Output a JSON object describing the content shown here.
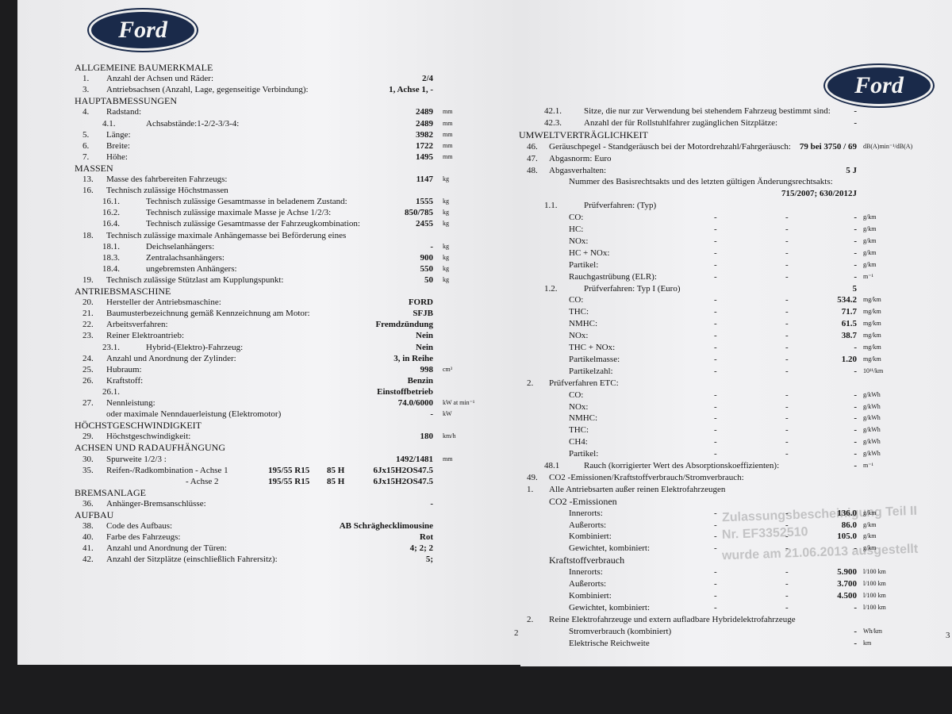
{
  "logos": [
    "Ford",
    "Ford"
  ],
  "left": {
    "page_number": "2",
    "rows": [
      {
        "heading": "ALLGEMEINE BAUMERKMALE"
      },
      {
        "num": "1.",
        "label": "Anzahl der Achsen und Räder:",
        "value": "2/4"
      },
      {
        "num": "3.",
        "label": "Antriebsachsen (Anzahl, Lage, gegenseitige Verbindung):",
        "value": "1, Achse 1, -"
      },
      {
        "heading": "HAUPTABMESSUNGEN"
      },
      {
        "num": "4.",
        "label": "Radstand:",
        "value": "2489",
        "unit": "mm"
      },
      {
        "num": "4.1.",
        "label": "Achsabstände:1-2/2-3/3-4:",
        "value": "2489",
        "unit": "mm"
      },
      {
        "num": "5.",
        "label": "Länge:",
        "value": "3982",
        "unit": "mm"
      },
      {
        "num": "6.",
        "label": "Breite:",
        "value": "1722",
        "unit": "mm"
      },
      {
        "num": "7.",
        "label": "Höhe:",
        "value": "1495",
        "unit": "mm"
      },
      {
        "heading": "MASSEN"
      },
      {
        "num": "13.",
        "label": "Masse des fahrbereiten Fahrzeugs:",
        "value": "1147",
        "unit": "kg"
      },
      {
        "num": "16.",
        "label": "Technisch zulässige Höchstmassen"
      },
      {
        "num": "16.1.",
        "label": "Technisch zulässige Gesamtmasse in beladenem Zustand:",
        "value": "1555",
        "unit": "kg"
      },
      {
        "num": "16.2.",
        "label": "Technisch zulässige maximale Masse je Achse 1/2/3:",
        "value": "850/785",
        "unit": "kg"
      },
      {
        "num": "16.4.",
        "label": "Technisch zulässige Gesamtmasse der Fahrzeugkombination:",
        "value": "2455",
        "unit": "kg"
      },
      {
        "num": "18.",
        "label": "Technisch zulässige maximale Anhängemasse bei Beförderung eines"
      },
      {
        "num": "18.1.",
        "label": "Deichselanhängers:",
        "value": "-",
        "unit": "kg"
      },
      {
        "num": "18.3.",
        "label": "Zentralachsanhängers:",
        "value": "900",
        "unit": "kg"
      },
      {
        "num": "18.4.",
        "label": "ungebremsten Anhängers:",
        "value": "550",
        "unit": "kg"
      },
      {
        "num": "19.",
        "label": "Technisch zulässige Stützlast am Kupplungspunkt:",
        "value": "50",
        "unit": "kg"
      },
      {
        "heading": "ANTRIEBSMASCHINE"
      },
      {
        "num": "20.",
        "label": "Hersteller der Antriebsmaschine:",
        "value": "FORD"
      },
      {
        "num": "21.",
        "label": "Baumusterbezeichnung gemäß Kennzeichnung am Motor:",
        "value": "SFJB"
      },
      {
        "num": "22.",
        "label": "Arbeitsverfahren:",
        "value": "Fremdzündung"
      },
      {
        "num": "23.",
        "label": "Reiner Elektroantrieb:",
        "value": "Nein"
      },
      {
        "num": "23.1.",
        "label": "Hybrid-(Elektro)-Fahrzeug:",
        "value": "Nein"
      },
      {
        "num": "24.",
        "label": "Anzahl und Anordnung der Zylinder:",
        "value": "3, in Reihe"
      },
      {
        "num": "25.",
        "label": "Hubraum:",
        "value": "998",
        "unit": "cm³"
      },
      {
        "num": "26.",
        "label": "Kraftstoff:",
        "value": "Benzin"
      },
      {
        "num": "26.1.",
        "value": "Einstoffbetrieb"
      },
      {
        "num": "27.",
        "label": "Nennleistung:",
        "value": "74.0/6000",
        "unit": "kW at min⁻¹"
      },
      {
        "label": "oder maximale Nenndauerleistung (Elektromotor)",
        "value": "-",
        "unit": "kW"
      },
      {
        "heading": "HÖCHSTGESCHWINDIGKEIT"
      },
      {
        "num": "29.",
        "label": "Höchstgeschwindigkeit:",
        "value": "180",
        "unit": "km/h"
      },
      {
        "heading": "ACHSEN UND RADAUFHÄNGUNG"
      },
      {
        "num": "30.",
        "label": "Spurweite 1/2/3 :",
        "value": "1492/1481",
        "unit": "mm"
      },
      {
        "num": "35.",
        "label": "Reifen-/Radkombination - Achse 1",
        "tyre": "195/55 R15",
        "load": "85 H",
        "value": "6Jx15H2OS47.5"
      },
      {
        "label": "- Achse 2",
        "tyre": "195/55 R15",
        "load": "85 H",
        "value": "6Jx15H2OS47.5"
      },
      {
        "heading": "BREMSANLAGE"
      },
      {
        "num": "36.",
        "label": "Anhänger-Bremsanschlüsse:",
        "value": "-"
      },
      {
        "heading": "AUFBAU"
      },
      {
        "num": "38.",
        "label": "Code des Aufbaus:",
        "value": "AB Schräghecklimousine"
      },
      {
        "num": "40.",
        "label": "Farbe des Fahrzeugs:",
        "value": "Rot"
      },
      {
        "num": "41.",
        "label": "Anzahl und Anordnung der Türen:",
        "value": "4; 2; 2"
      },
      {
        "num": "42.",
        "label": "Anzahl der Sitzplätze (einschließlich Fahrersitz):",
        "value": "5;"
      }
    ]
  },
  "right": {
    "page_number": "3",
    "rows": [
      {
        "num": "42.1.",
        "label": "Sitze, die nur zur Verwendung bei stehendem Fahrzeug bestimmt sind:",
        "value": "-"
      },
      {
        "num": "42.3.",
        "label": "Anzahl der für Rollstuhlfahrer zugänglichen Sitzplätze:",
        "value": "-"
      },
      {
        "heading": "UMWELTVERTRÄGLICHKEIT"
      },
      {
        "num": "46.",
        "label": "Geräuschpegel - Standgeräusch bei der Motordrehzahl/Fahrgeräusch:",
        "value": "79 bei 3750 / 69",
        "unit": "dB(A)min⁻¹/dB(A)"
      },
      {
        "num": "47.",
        "label": "Abgasnorm: Euro"
      },
      {
        "num": "48.",
        "label": "Abgasverhalten:",
        "value": "5 J"
      },
      {
        "label": "Nummer des Basisrechtsakts und des letzten gültigen Änderungsrechtsakts:"
      },
      {
        "value": "715/2007; 630/2012J"
      },
      {
        "num": "1.1.",
        "label": "Prüfverfahren: (Typ)"
      },
      {
        "label": "CO:",
        "c1": "-",
        "c2": "-",
        "value": "-",
        "unit": "g/km"
      },
      {
        "label": "HC:",
        "c1": "-",
        "c2": "-",
        "value": "-",
        "unit": "g/km"
      },
      {
        "label": "NOx:",
        "c1": "-",
        "c2": "-",
        "value": "-",
        "unit": "g/km"
      },
      {
        "label": "HC + NOx:",
        "c1": "-",
        "c2": "-",
        "value": "-",
        "unit": "g/km"
      },
      {
        "label": "Partikel:",
        "c1": "-",
        "c2": "-",
        "value": "-",
        "unit": "g/km"
      },
      {
        "label": "Rauchgastrübung (ELR):",
        "c1": "-",
        "c2": "-",
        "value": "-",
        "unit": "m⁻¹"
      },
      {
        "num": "1.2.",
        "label": "Prüfverfahren: Typ I (Euro)",
        "value": "5"
      },
      {
        "label": "CO:",
        "c1": "-",
        "c2": "-",
        "value": "534.2",
        "unit": "mg/km"
      },
      {
        "label": "THC:",
        "c1": "-",
        "c2": "-",
        "value": "71.7",
        "unit": "mg/km"
      },
      {
        "label": "NMHC:",
        "c1": "-",
        "c2": "-",
        "value": "61.5",
        "unit": "mg/km"
      },
      {
        "label": "NOx:",
        "c1": "-",
        "c2": "-",
        "value": "38.7",
        "unit": "mg/km"
      },
      {
        "label": "THC + NOx:",
        "c1": "-",
        "c2": "-",
        "value": "-",
        "unit": "mg/km"
      },
      {
        "label": "Partikelmasse:",
        "c1": "-",
        "c2": "-",
        "value": "1.20",
        "unit": "mg/km"
      },
      {
        "label": "Partikelzahl:",
        "c1": "-",
        "c2": "-",
        "value": "-",
        "unit": "10¹¹/km"
      },
      {
        "num": "2.",
        "label": "Prüfverfahren ETC:"
      },
      {
        "label": "CO:",
        "c1": "-",
        "c2": "-",
        "value": "-",
        "unit": "g/kWh"
      },
      {
        "label": "NOx:",
        "c1": "-",
        "c2": "-",
        "value": "-",
        "unit": "g/kWh"
      },
      {
        "label": "NMHC:",
        "c1": "-",
        "c2": "-",
        "value": "-",
        "unit": "g/kWh"
      },
      {
        "label": "THC:",
        "c1": "-",
        "c2": "-",
        "value": "-",
        "unit": "g/kWh"
      },
      {
        "label": "CH4:",
        "c1": "-",
        "c2": "-",
        "value": "-",
        "unit": "g/kWh"
      },
      {
        "label": "Partikel:",
        "c1": "-",
        "c2": "-",
        "value": "-",
        "unit": "g/kWh"
      },
      {
        "num": "48.1",
        "label": "Rauch (korrigierter Wert des Absorptionskoeffizienten):",
        "value": "-",
        "unit": "m⁻¹"
      },
      {
        "num": "49.",
        "label": "CO2 -Emissionen/Kraftstoffverbrauch/Stromverbrauch:"
      },
      {
        "num": "1.",
        "label": "Alle Antriebsarten außer reinen Elektrofahrzeugen"
      },
      {
        "heading": "CO2 -Emissionen"
      },
      {
        "label": "Innerorts:",
        "c1": "-",
        "c2": "-",
        "value": "136.0",
        "unit": "g/km"
      },
      {
        "label": "Außerorts:",
        "c1": "-",
        "c2": "-",
        "value": "86.0",
        "unit": "g/km"
      },
      {
        "label": "Kombiniert:",
        "c1": "-",
        "c2": "-",
        "value": "105.0",
        "unit": "g/km"
      },
      {
        "label": "Gewichtet, kombiniert:",
        "c1": "-",
        "c2": "-",
        "value": "-",
        "unit": "g/km"
      },
      {
        "heading": "Kraftstoffverbrauch"
      },
      {
        "label": "Innerorts:",
        "c1": "-",
        "c2": "-",
        "value": "5.900",
        "unit": "l/100 km"
      },
      {
        "label": "Außerorts:",
        "c1": "-",
        "c2": "-",
        "value": "3.700",
        "unit": "l/100 km"
      },
      {
        "label": "Kombiniert:",
        "c1": "-",
        "c2": "-",
        "value": "4.500",
        "unit": "l/100 km"
      },
      {
        "label": "Gewichtet, kombiniert:",
        "c1": "-",
        "c2": "-",
        "value": "-",
        "unit": "l/100 km"
      },
      {
        "num": "2.",
        "label": "Reine Elektrofahrzeuge und extern aufladbare Hybridelektrofahrzeuge"
      },
      {
        "label": "Stromverbrauch (kombiniert)",
        "value": "-",
        "unit": "Wh/km"
      },
      {
        "label": "Elektrische Reichweite",
        "value": "-",
        "unit": "km"
      }
    ]
  },
  "stamp": [
    "Zulassungsbescheinigung Teil II",
    "Nr. EF3352510",
    "wurde am 21.06.2013 ausgestellt"
  ]
}
